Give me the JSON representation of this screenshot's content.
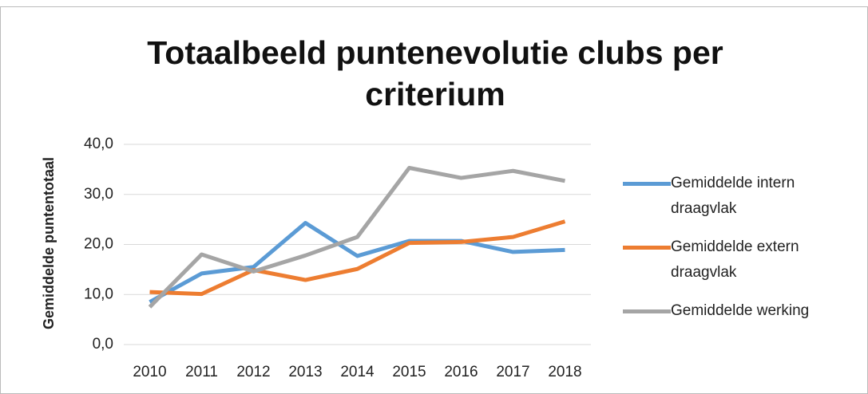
{
  "chart_data": {
    "type": "line",
    "title": "Totaalbeeld puntenevolutie clubs per criterium",
    "y_label": "Gemiddelde puntentotaal",
    "categories": [
      "2010",
      "2011",
      "2012",
      "2013",
      "2014",
      "2015",
      "2016",
      "2017",
      "2018"
    ],
    "series": [
      {
        "name": "Gemiddelde intern draagvlak",
        "color": "#5b9bd5",
        "values": [
          8.5,
          14.2,
          15.5,
          24.3,
          17.7,
          20.7,
          20.7,
          18.5,
          18.9
        ]
      },
      {
        "name": "Gemiddelde extern draagvlak",
        "color": "#ed7d31",
        "values": [
          10.5,
          10.1,
          14.9,
          12.9,
          15.1,
          20.3,
          20.5,
          21.5,
          24.6
        ]
      },
      {
        "name": "Gemiddelde werking",
        "color": "#a5a5a5",
        "values": [
          7.5,
          18.0,
          14.6,
          17.8,
          21.5,
          35.3,
          33.3,
          34.7,
          32.7
        ]
      }
    ],
    "ylim": [
      0,
      40
    ],
    "yticks": [
      {
        "value": 0,
        "label": "0,0"
      },
      {
        "value": 10,
        "label": "10,0"
      },
      {
        "value": 20,
        "label": "20,0"
      },
      {
        "value": 30,
        "label": "30,0"
      },
      {
        "value": 40,
        "label": "40,0"
      }
    ],
    "grid": true,
    "legend": "right"
  }
}
